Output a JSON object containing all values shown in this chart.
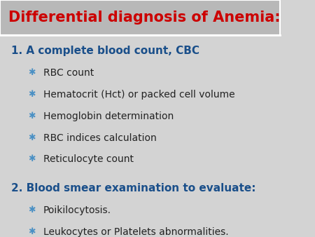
{
  "title": "Differential diagnosis of Anemia:",
  "title_color": "#cc0000",
  "content_bg_color": "#d3d3d3",
  "header_bg_color": "#b8b8b8",
  "section1_heading": "1. A complete blood count, CBC",
  "section1_color": "#1a4f8a",
  "section1_bullets": [
    "RBC count",
    "Hematocrit (Hct) or packed cell volume",
    "Hemoglobin determination",
    "RBC indices calculation",
    "Reticulocyte count"
  ],
  "section2_heading": "2. Blood smear examination to evaluate:",
  "section2_color": "#1a4f8a",
  "section2_bullets": [
    "Poikilocytosis.",
    "Leukocytes or Platelets abnormalities."
  ],
  "bullet_color": "#4a90c4",
  "bullet_text_color": "#222222",
  "bullet_symbol": "✱",
  "figsize": [
    4.5,
    3.38
  ],
  "dpi": 100
}
